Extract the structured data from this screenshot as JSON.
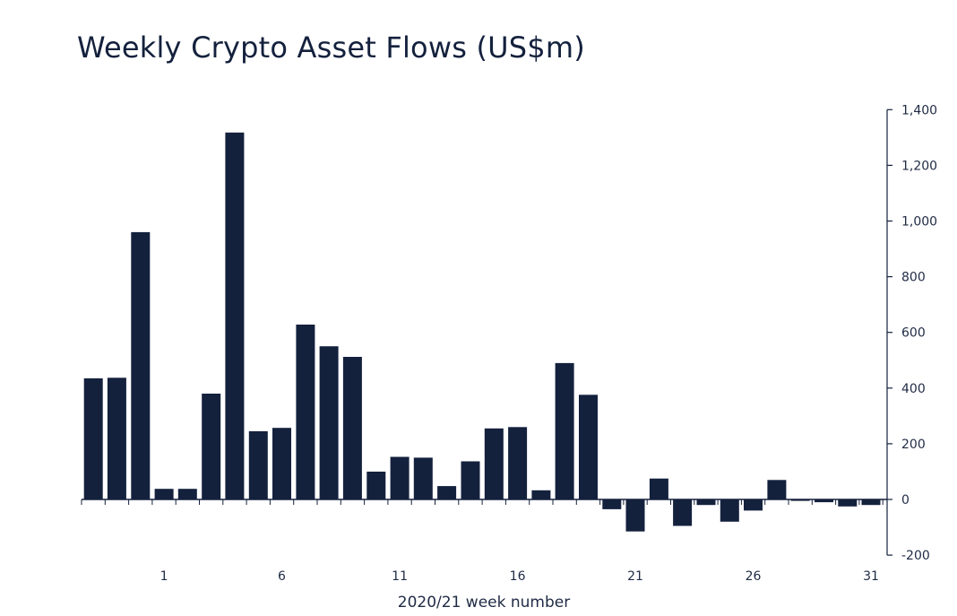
{
  "chart_data": {
    "type": "bar",
    "title": "Weekly Crypto Asset Flows (US$m)",
    "xlabel": "2020/21 week number",
    "ylabel": "",
    "x": [
      -2,
      -1,
      0,
      1,
      2,
      3,
      4,
      5,
      6,
      7,
      8,
      9,
      10,
      11,
      12,
      13,
      14,
      15,
      16,
      17,
      18,
      19,
      20,
      21,
      22,
      23,
      24,
      25,
      26,
      27,
      28,
      29,
      30,
      31
    ],
    "values": [
      435,
      437,
      960,
      38,
      38,
      380,
      1318,
      245,
      257,
      628,
      550,
      512,
      100,
      153,
      150,
      48,
      137,
      255,
      260,
      33,
      490,
      376,
      -35,
      -115,
      75,
      -95,
      -20,
      -80,
      -40,
      70,
      -5,
      -10,
      -25,
      -20
    ],
    "x_ticks": [
      "1",
      "6",
      "11",
      "16",
      "21",
      "26",
      "31"
    ],
    "x_tick_values": [
      1,
      6,
      11,
      16,
      21,
      26,
      31
    ],
    "y_ticks": [
      "1,400",
      "1,200",
      "1,000",
      "800",
      "600",
      "400",
      "200",
      "0",
      "-200"
    ],
    "y_tick_values": [
      1400,
      1200,
      1000,
      800,
      600,
      400,
      200,
      0,
      -200
    ],
    "ylim": [
      -200,
      1400
    ],
    "y_axis_side": "right",
    "grid": false,
    "colors": {
      "bar": "#14213d",
      "axis": "#14213d"
    }
  }
}
